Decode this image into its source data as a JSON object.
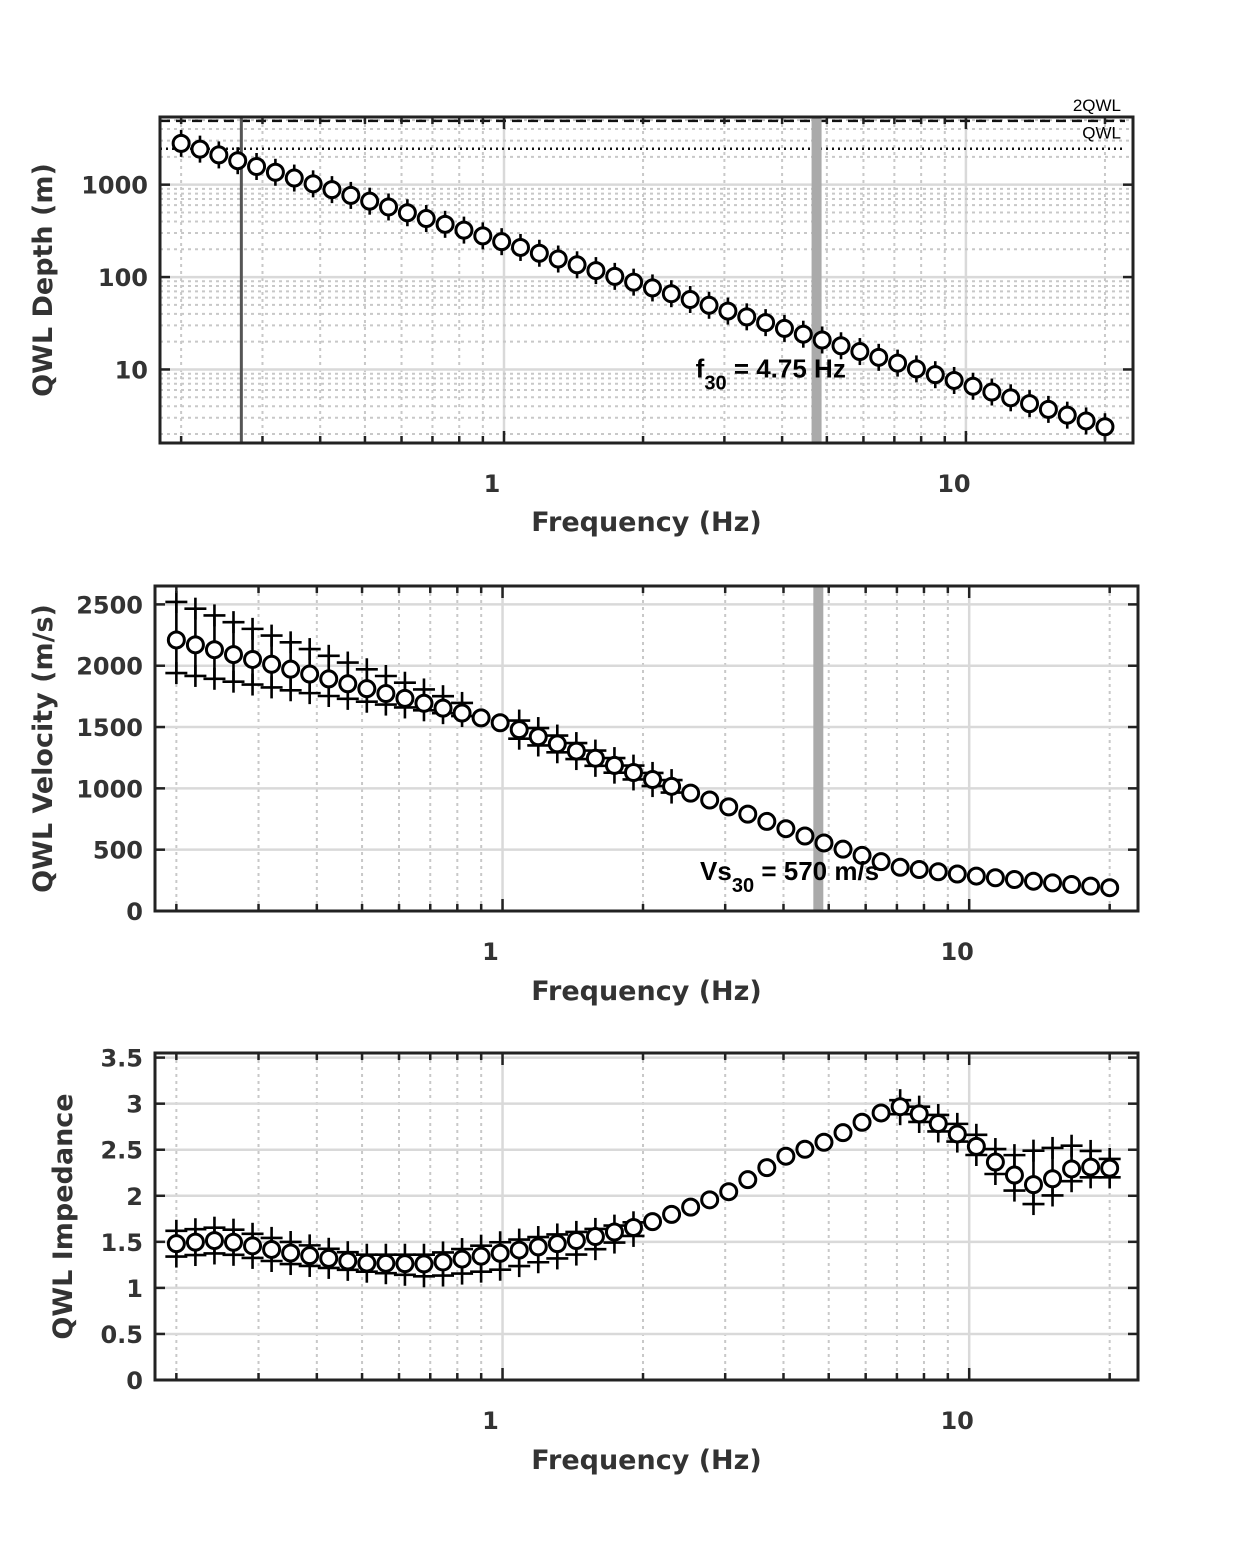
{
  "chart_data": [
    {
      "type": "scatter",
      "xlabel": "Frequency (Hz)",
      "ylabel": "QWL Depth (m)",
      "xscale": "log",
      "yscale": "log",
      "xlim": [
        0.18,
        23
      ],
      "ylim": [
        1.6,
        5400
      ],
      "x_ticks": [
        {
          "value": 1,
          "label": "1"
        },
        {
          "value": 10,
          "label": "10"
        }
      ],
      "y_ticks": [
        {
          "value": 10,
          "label": "10"
        },
        {
          "value": 100,
          "label": "100"
        },
        {
          "value": 1000,
          "label": "1000"
        }
      ],
      "grid": true,
      "reference_lines": [
        {
          "label": "2QWL",
          "value": 4900,
          "style": "dashed"
        },
        {
          "label": "QWL",
          "value": 2450,
          "style": "dotted"
        }
      ],
      "vertical_lines": [
        {
          "value": 0.27,
          "color": "#555555"
        },
        {
          "value": 4.75,
          "color": "#aaaaaa"
        }
      ],
      "annotation": {
        "main": "f",
        "sub": "30",
        "rest": " = 4.75 Hz",
        "x": 2.6,
        "y": 10
      },
      "marker": "circle",
      "error_start": 2800,
      "error_end": 2.4,
      "error_factor": 1.4
    },
    {
      "type": "scatter",
      "xlabel": "Frequency (Hz)",
      "ylabel": "QWL Velocity (m/s)",
      "xscale": "log",
      "yscale": "linear",
      "xlim": [
        0.18,
        23
      ],
      "ylim": [
        0,
        2650
      ],
      "x_ticks": [
        {
          "value": 1,
          "label": "1"
        },
        {
          "value": 10,
          "label": "10"
        }
      ],
      "y_ticks": [
        {
          "value": 0,
          "label": "0"
        },
        {
          "value": 500,
          "label": "500"
        },
        {
          "value": 1000,
          "label": "1000"
        },
        {
          "value": 1500,
          "label": "1500"
        },
        {
          "value": 2000,
          "label": "2000"
        },
        {
          "value": 2500,
          "label": "2500"
        }
      ],
      "grid": true,
      "vertical_lines": [
        {
          "value": 4.75,
          "color": "#aaaaaa"
        }
      ],
      "annotation": {
        "main": "Vs",
        "sub": "30",
        "rest": " = 570 m/s",
        "x": 2.65,
        "y": 320
      },
      "marker": "circle",
      "bounds_marker": "plus",
      "series": [
        {
          "x": [
            0.2,
            1,
            2,
            3,
            4.75,
            7,
            10,
            15,
            20
          ],
          "y": [
            2210,
            1530,
            1100,
            860,
            570,
            360,
            290,
            230,
            190
          ]
        },
        {
          "x": [
            0.2,
            1
          ],
          "y": [
            2520,
            1580
          ]
        },
        {
          "x": [
            0.2,
            1
          ],
          "y": [
            1940,
            1540
          ]
        }
      ]
    },
    {
      "type": "scatter",
      "xlabel": "Frequency (Hz)",
      "ylabel": "QWL Impedance",
      "xscale": "log",
      "yscale": "linear",
      "xlim": [
        0.18,
        23
      ],
      "ylim": [
        0,
        3.55
      ],
      "x_ticks": [
        {
          "value": 1,
          "label": "1"
        },
        {
          "value": 10,
          "label": "10"
        }
      ],
      "y_ticks": [
        {
          "value": 0,
          "label": "0"
        },
        {
          "value": 0.5,
          "label": "0.5"
        },
        {
          "value": 1,
          "label": "1"
        },
        {
          "value": 1.5,
          "label": "1.5"
        },
        {
          "value": 2,
          "label": "2"
        },
        {
          "value": 2.5,
          "label": "2.5"
        },
        {
          "value": 3,
          "label": "3"
        },
        {
          "value": 3.5,
          "label": "3.5"
        }
      ],
      "grid": true,
      "marker": "circle",
      "bounds_marker": "plus",
      "series": [
        {
          "x": [
            0.2,
            0.25,
            0.35,
            0.5,
            0.7,
            1,
            1.5,
            2,
            3,
            4,
            5,
            6,
            7,
            8,
            10,
            12,
            14,
            17,
            20
          ],
          "y": [
            1.48,
            1.52,
            1.38,
            1.27,
            1.26,
            1.38,
            1.53,
            1.68,
            2.02,
            2.42,
            2.6,
            2.82,
            2.98,
            2.87,
            2.6,
            2.27,
            2.1,
            2.32,
            2.3
          ]
        },
        {
          "x": [
            0.2,
            0.25,
            0.35,
            0.5,
            0.7,
            1,
            1.5,
            2,
            3,
            4,
            5,
            6,
            7,
            8,
            10,
            12,
            14,
            17,
            20
          ],
          "y": [
            1.62,
            1.66,
            1.5,
            1.36,
            1.36,
            1.5,
            1.62,
            1.73,
            2.06,
            2.46,
            2.64,
            2.86,
            3.05,
            2.95,
            2.72,
            2.42,
            2.5,
            2.55,
            2.4
          ]
        },
        {
          "x": [
            0.2,
            0.25,
            0.35,
            0.5,
            0.7,
            1,
            1.5,
            2,
            3,
            4,
            5,
            6,
            7,
            8,
            10,
            12,
            14,
            17,
            20
          ],
          "y": [
            1.34,
            1.38,
            1.26,
            1.18,
            1.12,
            1.2,
            1.38,
            1.6,
            1.98,
            2.38,
            2.56,
            2.78,
            2.9,
            2.78,
            2.52,
            2.12,
            1.88,
            2.2,
            2.2
          ]
        }
      ]
    }
  ]
}
